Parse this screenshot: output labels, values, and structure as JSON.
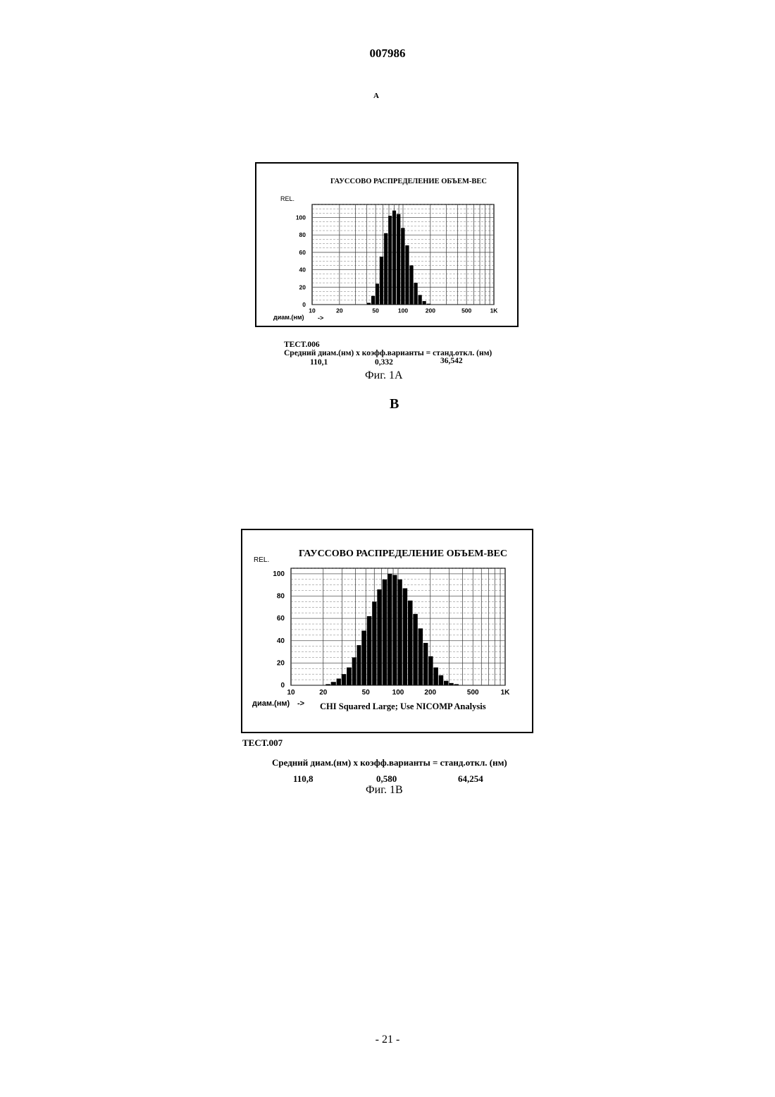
{
  "document": {
    "page_number_top": "007986",
    "page_footer": "- 21 -"
  },
  "chart_data": [
    {
      "type": "bar",
      "panel_label": "A",
      "title": "ГАУССОВО РАСПРЕДЕЛЕНИЕ ОБЪЕМ-ВЕС",
      "ylabel": "REL.",
      "xlabel": "диам.(нм)",
      "xlabel_arrow": "->",
      "x_scale": "log",
      "xlim": [
        10,
        1000
      ],
      "ylim": [
        0,
        115
      ],
      "x_ticks": [
        {
          "value": 10,
          "label": "10"
        },
        {
          "value": 20,
          "label": "20"
        },
        {
          "value": 50,
          "label": "50"
        },
        {
          "value": 100,
          "label": "100"
        },
        {
          "value": 200,
          "label": "200"
        },
        {
          "value": 500,
          "label": "500"
        },
        {
          "value": 1000,
          "label": "1K"
        }
      ],
      "y_ticks": [
        0,
        20,
        40,
        60,
        80,
        100
      ],
      "grid": true,
      "x": [
        38,
        42,
        47,
        52,
        58,
        65,
        72,
        80,
        89,
        100,
        111,
        124,
        138,
        154,
        171,
        191,
        213,
        237,
        264
      ],
      "values": [
        0,
        2,
        10,
        24,
        55,
        82,
        102,
        108,
        104,
        88,
        68,
        45,
        25,
        11,
        4,
        1,
        0,
        0,
        0
      ],
      "test_id": "TECT.006",
      "stats_header": "Средний диам.(нм) x коэфф.варианты = станд.откл. (нм)",
      "stats_values": [
        "110,1",
        "0,332",
        "36,542"
      ],
      "caption": "Фиг. 1А"
    },
    {
      "type": "bar",
      "panel_label": "B",
      "title": "ГАУССОВО РАСПРЕДЕЛЕНИЕ ОБЪЕМ-ВЕС",
      "ylabel": "REL.",
      "xlabel": "диам.(нм)",
      "xlabel_arrow": "->",
      "annotation": "CHI Squared Large; Use NICOMP Analysis",
      "x_scale": "log",
      "xlim": [
        10,
        1000
      ],
      "ylim": [
        0,
        105
      ],
      "x_ticks": [
        {
          "value": 10,
          "label": "10"
        },
        {
          "value": 20,
          "label": "20"
        },
        {
          "value": 50,
          "label": "50"
        },
        {
          "value": 100,
          "label": "100"
        },
        {
          "value": 200,
          "label": "200"
        },
        {
          "value": 500,
          "label": "500"
        },
        {
          "value": 1000,
          "label": "1K"
        }
      ],
      "y_ticks": [
        0,
        20,
        40,
        60,
        80,
        100
      ],
      "grid": true,
      "x": [
        20,
        22,
        25,
        28,
        31,
        35,
        39,
        43,
        48,
        54,
        60,
        67,
        75,
        84,
        93,
        104,
        116,
        130,
        145,
        162,
        181,
        202,
        225,
        252,
        281,
        314,
        350,
        391
      ],
      "values": [
        0,
        1,
        3,
        6,
        10,
        16,
        25,
        36,
        49,
        62,
        75,
        86,
        95,
        100,
        99,
        95,
        87,
        76,
        64,
        51,
        38,
        26,
        16,
        9,
        4,
        2,
        1,
        0
      ],
      "test_id": "TECT.007",
      "stats_header": "Средний диам.(нм) x коэфф.варианты = станд.откл. (нм)",
      "stats_values": [
        "110,8",
        "0,580",
        "64,254"
      ],
      "caption": "Фиг. 1В"
    }
  ]
}
